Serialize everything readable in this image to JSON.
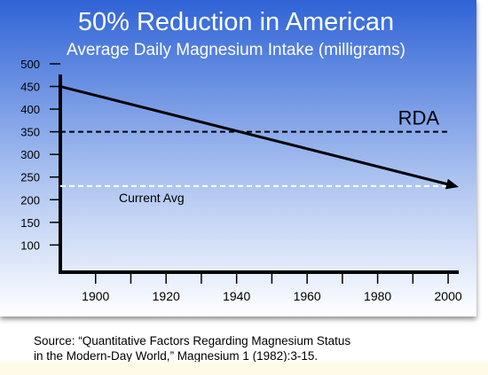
{
  "chart_data": {
    "type": "line",
    "title": "50% Reduction in American",
    "subtitle": "Average Daily Magnesium Intake (milligrams)",
    "xlabel": "",
    "ylabel": "",
    "xlim": [
      1890,
      2003
    ],
    "ylim": [
      40,
      500
    ],
    "x_ticks": [
      1900,
      1920,
      1940,
      1960,
      1980,
      2000
    ],
    "y_ticks": [
      100,
      150,
      200,
      250,
      300,
      350,
      400,
      450,
      500
    ],
    "grid": false,
    "series": [
      {
        "name": "",
        "x": [
          1890,
          2003
        ],
        "y": [
          450,
          228
        ],
        "color": "#000000",
        "style": "solid-arrow"
      }
    ],
    "reference_lines": [
      {
        "label": "RDA",
        "y": 350,
        "color": "#000000",
        "style": "dashed",
        "x": [
          1890,
          2000
        ]
      },
      {
        "label": "Current Avg",
        "y": 230,
        "color": "#ffffff",
        "style": "dashed",
        "x": [
          1890,
          2000
        ]
      }
    ],
    "background_gradient": [
      "#2f63d6",
      "#ffffff"
    ]
  },
  "footer": {
    "source_line1": "Source: “Quantitative Factors Regarding Magnesium Status",
    "source_line2": "in the Modern-Day World,” Magnesium 1 (1982):3-15."
  }
}
